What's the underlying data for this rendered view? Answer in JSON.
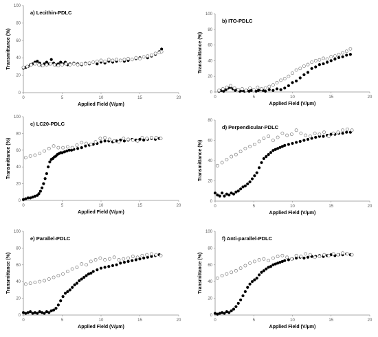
{
  "figure": {
    "x_axis_label": "Applied Field (V/μm)",
    "y_axis_label": "Transmittance (%)"
  },
  "chart_data": [
    {
      "type": "scatter",
      "title": "a) Lecithin-PDLC",
      "xlabel": "Applied Field (V/μm)",
      "ylabel": "Transmittance (%)",
      "xlim": [
        0,
        20
      ],
      "ylim": [
        0,
        100
      ],
      "xticks": [
        0,
        5,
        10,
        15,
        20
      ],
      "yticks": [
        0,
        20,
        40,
        60,
        80,
        100
      ],
      "grid": false,
      "series": [
        {
          "marker": "filled",
          "x": [
            0.0,
            0.3,
            0.6,
            0.9,
            1.2,
            1.5,
            1.8,
            2.1,
            2.4,
            2.7,
            3.0,
            3.3,
            3.6,
            3.9,
            4.2,
            4.5,
            4.8,
            5.1,
            5.4,
            5.7,
            6.0,
            6.5,
            7.0,
            7.5,
            8.0,
            8.5,
            9.0,
            9.5,
            10.0,
            10.5,
            11.0,
            11.5,
            12.0,
            12.5,
            13.0,
            13.5,
            14.0,
            14.5,
            15.0,
            15.5,
            16.0,
            16.5,
            17.0,
            17.5,
            17.8
          ],
          "y": [
            28,
            29,
            30,
            32,
            33,
            35,
            36,
            34,
            31,
            33,
            35,
            33,
            38,
            34,
            32,
            33,
            35,
            33,
            35,
            32,
            33,
            34,
            33,
            32,
            34,
            33,
            35,
            33,
            35,
            34,
            36,
            35,
            36,
            37,
            36,
            37,
            38,
            39,
            40,
            41,
            40,
            42,
            44,
            47,
            50
          ]
        },
        {
          "marker": "hollow",
          "x": [
            0.0,
            0.5,
            1.0,
            1.5,
            2.0,
            2.5,
            3.0,
            3.5,
            4.0,
            4.5,
            5.0,
            5.5,
            6.0,
            6.5,
            7.0,
            7.5,
            8.0,
            8.5,
            9.0,
            9.5,
            10.0,
            10.5,
            11.0,
            11.5,
            12.0,
            12.5,
            13.0,
            13.5,
            14.0,
            14.5,
            15.0,
            15.5,
            16.0,
            16.5,
            17.0,
            17.5,
            17.8
          ],
          "y": [
            29,
            30,
            32,
            33,
            32,
            31,
            32,
            33,
            32,
            31,
            32,
            33,
            32,
            33,
            32,
            33,
            33,
            34,
            35,
            36,
            37,
            36,
            38,
            37,
            38,
            37,
            38,
            39,
            38,
            40,
            39,
            41,
            42,
            43,
            45,
            46,
            47
          ]
        }
      ]
    },
    {
      "type": "scatter",
      "title": "b) ITO-PDLC",
      "xlabel": "Applied Field (V/μm)",
      "ylabel": "Transmittance (%)",
      "xlim": [
        0,
        20
      ],
      "ylim": [
        0,
        100
      ],
      "xticks": [
        0,
        5,
        10,
        15,
        20
      ],
      "yticks": [
        0,
        20,
        40,
        60,
        80,
        100
      ],
      "grid": false,
      "series": [
        {
          "marker": "filled",
          "x": [
            0.5,
            0.8,
            1.1,
            1.4,
            1.7,
            2.0,
            2.3,
            2.6,
            2.9,
            3.2,
            3.5,
            3.8,
            4.1,
            4.4,
            4.7,
            5.0,
            5.3,
            5.6,
            5.9,
            6.2,
            6.5,
            7.0,
            7.5,
            8.0,
            8.5,
            9.0,
            9.5,
            10.0,
            10.5,
            11.0,
            11.5,
            12.0,
            12.5,
            13.0,
            13.5,
            14.0,
            14.5,
            15.0,
            15.5,
            16.0,
            16.5,
            17.0,
            17.5
          ],
          "y": [
            1,
            2,
            1,
            3,
            5,
            6,
            4,
            2,
            3,
            1,
            2,
            1,
            2,
            1,
            2,
            3,
            1,
            2,
            3,
            2,
            1,
            3,
            2,
            4,
            3,
            5,
            8,
            12,
            14,
            18,
            22,
            25,
            30,
            32,
            35,
            36,
            38,
            40,
            42,
            44,
            45,
            47,
            48
          ]
        },
        {
          "marker": "hollow",
          "x": [
            0.5,
            1.0,
            1.5,
            2.0,
            2.5,
            3.0,
            3.5,
            4.0,
            4.5,
            5.0,
            5.5,
            6.0,
            6.5,
            7.0,
            7.5,
            8.0,
            8.5,
            9.0,
            9.5,
            10.0,
            10.5,
            11.0,
            11.5,
            12.0,
            12.5,
            13.0,
            13.5,
            14.0,
            14.5,
            15.0,
            15.5,
            16.0,
            16.5,
            17.0,
            17.5
          ],
          "y": [
            2,
            4,
            6,
            8,
            5,
            3,
            4,
            2,
            5,
            3,
            6,
            4,
            5,
            7,
            9,
            12,
            15,
            17,
            20,
            24,
            28,
            30,
            33,
            35,
            38,
            40,
            41,
            43,
            42,
            45,
            46,
            48,
            50,
            52,
            55
          ]
        }
      ]
    },
    {
      "type": "scatter",
      "title": "c) LC20-PDLC",
      "xlabel": "Applied Field (V/μm)",
      "ylabel": "Transmittance (%)",
      "xlim": [
        0,
        20
      ],
      "ylim": [
        0,
        100
      ],
      "xticks": [
        0,
        5,
        10,
        15,
        20
      ],
      "yticks": [
        0,
        20,
        40,
        60,
        80,
        100
      ],
      "grid": false,
      "series": [
        {
          "marker": "filled",
          "x": [
            0.0,
            0.3,
            0.6,
            0.9,
            1.2,
            1.5,
            1.8,
            2.0,
            2.2,
            2.4,
            2.6,
            2.8,
            3.0,
            3.2,
            3.4,
            3.6,
            3.8,
            4.0,
            4.2,
            4.4,
            4.6,
            4.8,
            5.0,
            5.3,
            5.6,
            5.9,
            6.2,
            6.5,
            7.0,
            7.5,
            8.0,
            8.5,
            9.0,
            9.5,
            10.0,
            10.5,
            11.0,
            11.5,
            12.0,
            12.5,
            13.0,
            13.5,
            14.0,
            14.5,
            15.0,
            15.5,
            16.0,
            16.5,
            17.0,
            17.5
          ],
          "y": [
            1,
            2,
            3,
            3,
            4,
            5,
            6,
            8,
            11,
            15,
            20,
            26,
            32,
            40,
            46,
            49,
            50,
            52,
            53,
            55,
            56,
            57,
            57,
            58,
            59,
            60,
            60,
            61,
            62,
            63,
            65,
            66,
            67,
            68,
            70,
            71,
            71,
            70,
            71,
            72,
            71,
            72,
            73,
            72,
            73,
            72,
            73,
            74,
            73,
            74
          ]
        },
        {
          "marker": "hollow",
          "x": [
            0.3,
            0.9,
            1.5,
            2.1,
            2.7,
            3.3,
            3.9,
            4.5,
            5.1,
            5.7,
            6.3,
            6.9,
            7.5,
            8.1,
            8.7,
            9.3,
            9.9,
            10.5,
            11.1,
            11.7,
            12.3,
            12.9,
            13.5,
            14.1,
            14.7,
            15.3,
            15.9,
            16.5,
            17.1,
            17.7
          ],
          "y": [
            51,
            53,
            54,
            56,
            59,
            62,
            65,
            63,
            63,
            64,
            63,
            66,
            69,
            68,
            67,
            70,
            74,
            75,
            73,
            71,
            70,
            74,
            73,
            72,
            71,
            75,
            74,
            75,
            75,
            74
          ]
        }
      ]
    },
    {
      "type": "scatter",
      "title": "d) Perpendicular-PDLC",
      "xlabel": "Applied Field (V/μm)",
      "ylabel": "Transmittance (%)",
      "xlim": [
        0,
        20
      ],
      "ylim": [
        0,
        80
      ],
      "xticks": [
        0,
        5,
        10,
        15,
        20
      ],
      "yticks": [
        0,
        20,
        40,
        60,
        80
      ],
      "grid": false,
      "series": [
        {
          "marker": "filled",
          "x": [
            0.0,
            0.3,
            0.6,
            0.9,
            1.2,
            1.5,
            1.8,
            2.1,
            2.4,
            2.7,
            3.0,
            3.3,
            3.6,
            3.9,
            4.2,
            4.5,
            4.8,
            5.1,
            5.4,
            5.7,
            6.0,
            6.3,
            6.6,
            6.9,
            7.2,
            7.5,
            7.8,
            8.1,
            8.4,
            8.7,
            9.0,
            9.5,
            10.0,
            10.5,
            11.0,
            11.5,
            12.0,
            12.5,
            13.0,
            13.5,
            14.0,
            14.5,
            15.0,
            15.5,
            16.0,
            16.5,
            17.0,
            17.5
          ],
          "y": [
            8,
            6,
            5,
            8,
            5,
            7,
            6,
            8,
            7,
            9,
            10,
            12,
            14,
            15,
            17,
            19,
            22,
            25,
            28,
            33,
            38,
            42,
            44,
            46,
            48,
            50,
            51,
            52,
            53,
            54,
            55,
            56,
            57,
            58,
            59,
            60,
            61,
            62,
            63,
            64,
            64,
            65,
            66,
            66,
            67,
            67,
            68,
            68
          ]
        },
        {
          "marker": "hollow",
          "x": [
            0.3,
            0.9,
            1.5,
            2.1,
            2.7,
            3.3,
            3.9,
            4.5,
            5.1,
            5.7,
            6.3,
            6.9,
            7.5,
            8.1,
            8.7,
            9.3,
            9.9,
            10.5,
            11.1,
            11.7,
            12.3,
            12.9,
            13.5,
            14.1,
            14.7,
            15.3,
            15.9,
            16.5,
            17.1,
            17.7
          ],
          "y": [
            35,
            38,
            41,
            44,
            46,
            49,
            52,
            54,
            56,
            59,
            62,
            64,
            60,
            63,
            67,
            65,
            66,
            70,
            67,
            65,
            64,
            67,
            66,
            68,
            64,
            67,
            68,
            70,
            71,
            70
          ]
        }
      ]
    },
    {
      "type": "scatter",
      "title": "e) Parallel-PDLC",
      "xlabel": "Applied Field (V/μm)",
      "ylabel": "Transmittance (%)",
      "xlim": [
        0,
        20
      ],
      "ylim": [
        0,
        100
      ],
      "xticks": [
        0,
        5,
        10,
        15,
        20
      ],
      "yticks": [
        0,
        20,
        40,
        60,
        80,
        100
      ],
      "grid": false,
      "series": [
        {
          "marker": "filled",
          "x": [
            0.0,
            0.3,
            0.6,
            0.9,
            1.2,
            1.5,
            1.8,
            2.1,
            2.4,
            2.7,
            3.0,
            3.3,
            3.6,
            3.9,
            4.2,
            4.5,
            4.8,
            5.1,
            5.4,
            5.7,
            6.0,
            6.3,
            6.6,
            6.9,
            7.2,
            7.5,
            7.8,
            8.1,
            8.4,
            8.7,
            9.0,
            9.5,
            10.0,
            10.5,
            11.0,
            11.5,
            12.0,
            12.5,
            13.0,
            13.5,
            14.0,
            14.5,
            15.0,
            15.5,
            16.0,
            16.5,
            17.0,
            17.5
          ],
          "y": [
            3,
            2,
            3,
            4,
            2,
            3,
            2,
            4,
            3,
            2,
            4,
            3,
            5,
            6,
            8,
            12,
            17,
            22,
            26,
            28,
            30,
            33,
            36,
            38,
            41,
            43,
            45,
            47,
            49,
            50,
            52,
            54,
            56,
            57,
            58,
            59,
            60,
            62,
            63,
            64,
            65,
            66,
            67,
            68,
            69,
            70,
            71,
            72
          ]
        },
        {
          "marker": "hollow",
          "x": [
            0.3,
            0.9,
            1.5,
            2.1,
            2.7,
            3.3,
            3.9,
            4.5,
            5.1,
            5.7,
            6.3,
            6.9,
            7.5,
            8.1,
            8.7,
            9.3,
            9.9,
            10.5,
            11.1,
            11.7,
            12.3,
            12.9,
            13.5,
            14.1,
            14.7,
            15.3,
            15.9,
            16.5,
            17.1,
            17.7
          ],
          "y": [
            37,
            38,
            39,
            40,
            41,
            43,
            45,
            47,
            49,
            52,
            55,
            57,
            61,
            60,
            64,
            66,
            68,
            66,
            67,
            69,
            66,
            67,
            68,
            70,
            69,
            71,
            72,
            73,
            72,
            71
          ]
        }
      ]
    },
    {
      "type": "scatter",
      "title": "f) Anti-parallel-PDLC",
      "xlabel": "Applied Field (V/μm)",
      "ylabel": "Transmittance (%)",
      "xlim": [
        0,
        20
      ],
      "ylim": [
        0,
        100
      ],
      "xticks": [
        0,
        5,
        10,
        15,
        20
      ],
      "yticks": [
        0,
        20,
        40,
        60,
        80,
        100
      ],
      "grid": false,
      "series": [
        {
          "marker": "filled",
          "x": [
            0.0,
            0.3,
            0.6,
            0.9,
            1.2,
            1.5,
            1.8,
            2.1,
            2.4,
            2.7,
            3.0,
            3.3,
            3.6,
            3.9,
            4.2,
            4.5,
            4.8,
            5.1,
            5.4,
            5.7,
            6.0,
            6.3,
            6.6,
            6.9,
            7.2,
            7.5,
            7.8,
            8.1,
            8.4,
            8.7,
            9.0,
            9.5,
            10.0,
            10.5,
            11.0,
            11.5,
            12.0,
            12.5,
            13.0,
            13.5,
            14.0,
            14.5,
            15.0,
            15.5,
            16.0,
            16.5,
            17.0,
            17.5
          ],
          "y": [
            2,
            1,
            2,
            3,
            2,
            4,
            3,
            5,
            7,
            10,
            14,
            18,
            23,
            28,
            33,
            37,
            40,
            42,
            44,
            48,
            51,
            53,
            55,
            57,
            58,
            60,
            61,
            62,
            63,
            64,
            65,
            66,
            67,
            68,
            69,
            68,
            69,
            70,
            70,
            71,
            70,
            71,
            72,
            71,
            72,
            72,
            73,
            72
          ]
        },
        {
          "marker": "hollow",
          "x": [
            0.3,
            0.9,
            1.5,
            2.1,
            2.7,
            3.3,
            3.9,
            4.5,
            5.1,
            5.7,
            6.3,
            6.9,
            7.5,
            8.1,
            8.7,
            9.3,
            9.9,
            10.5,
            11.1,
            11.7,
            12.3,
            12.9,
            13.5,
            14.1,
            14.7,
            15.3,
            15.9,
            16.5,
            17.1,
            17.7
          ],
          "y": [
            44,
            47,
            49,
            51,
            53,
            56,
            59,
            62,
            64,
            66,
            67,
            65,
            68,
            70,
            71,
            69,
            67,
            71,
            70,
            73,
            72,
            69,
            70,
            72,
            71,
            73,
            72,
            74,
            73,
            72
          ]
        }
      ]
    }
  ]
}
